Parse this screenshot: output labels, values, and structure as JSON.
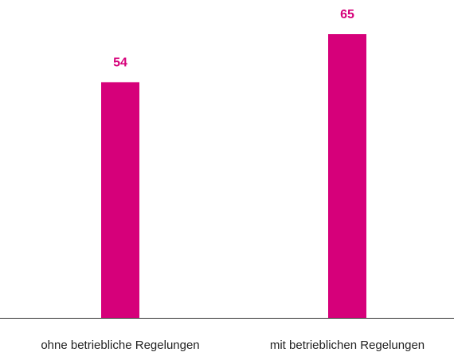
{
  "chart_data": {
    "type": "bar",
    "categories": [
      "ohne betriebliche Regelungen",
      "mit betrieblichen Regelungen"
    ],
    "values": [
      54,
      65
    ],
    "color": "#d6007a"
  }
}
